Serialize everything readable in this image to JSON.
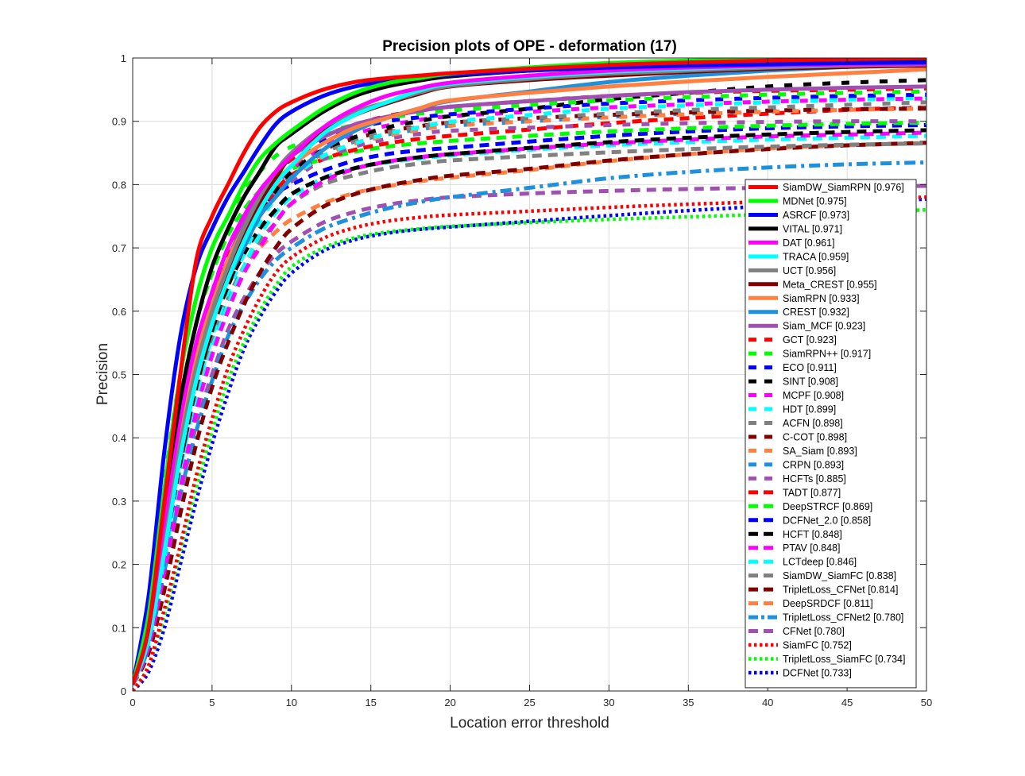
{
  "chart_data": {
    "type": "line",
    "title": "Precision plots of OPE - deformation (17)",
    "xlabel": "Location error threshold",
    "ylabel": "Precision",
    "xlim": [
      0,
      50
    ],
    "ylim": [
      0,
      1
    ],
    "xticks": [
      0,
      5,
      10,
      15,
      20,
      25,
      30,
      35,
      40,
      45,
      50
    ],
    "yticks": [
      0,
      0.1,
      0.2,
      0.3,
      0.4,
      0.5,
      0.6,
      0.7,
      0.8,
      0.9,
      1
    ],
    "ytick_labels": [
      "0",
      "0.1",
      "0.2",
      "0.3",
      "0.4",
      "0.5",
      "0.6",
      "0.7",
      "0.8",
      "0.9",
      "1"
    ],
    "grid": true,
    "legend_position": "right",
    "x": [
      0,
      1,
      2,
      3,
      4,
      5,
      6,
      7,
      8,
      9,
      10,
      12,
      14,
      16,
      18,
      20,
      25,
      30,
      35,
      40,
      45,
      50
    ],
    "series": [
      {
        "name": "SiamDW_SiamRPN [0.976]",
        "color": "#ff0000",
        "style": "solid",
        "values": [
          0.01,
          0.1,
          0.3,
          0.5,
          0.68,
          0.75,
          0.8,
          0.85,
          0.89,
          0.915,
          0.93,
          0.95,
          0.962,
          0.968,
          0.972,
          0.976,
          0.983,
          0.989,
          0.993,
          0.996,
          0.998,
          1.0
        ]
      },
      {
        "name": "MDNet [0.975]",
        "color": "#00ff00",
        "style": "solid",
        "values": [
          0.01,
          0.12,
          0.32,
          0.5,
          0.62,
          0.7,
          0.75,
          0.8,
          0.84,
          0.865,
          0.885,
          0.92,
          0.945,
          0.96,
          0.968,
          0.975,
          0.985,
          0.992,
          0.996,
          0.998,
          1.0,
          1.0
        ]
      },
      {
        "name": "ASRCF [0.973]",
        "color": "#0000ff",
        "style": "solid",
        "values": [
          0.01,
          0.15,
          0.38,
          0.56,
          0.67,
          0.73,
          0.78,
          0.82,
          0.86,
          0.895,
          0.915,
          0.94,
          0.955,
          0.963,
          0.969,
          0.973,
          0.98,
          0.985,
          0.988,
          0.99,
          0.992,
          0.993
        ]
      },
      {
        "name": "VITAL [0.971]",
        "color": "#000000",
        "style": "solid",
        "values": [
          0.01,
          0.1,
          0.3,
          0.46,
          0.58,
          0.67,
          0.73,
          0.78,
          0.82,
          0.86,
          0.88,
          0.915,
          0.94,
          0.955,
          0.964,
          0.971,
          0.98,
          0.986,
          0.99,
          0.993,
          0.995,
          0.996
        ]
      },
      {
        "name": "DAT [0.961]",
        "color": "#ff00ff",
        "style": "solid",
        "values": [
          0.01,
          0.1,
          0.27,
          0.43,
          0.55,
          0.63,
          0.7,
          0.75,
          0.79,
          0.82,
          0.845,
          0.89,
          0.92,
          0.94,
          0.952,
          0.961,
          0.972,
          0.98,
          0.985,
          0.988,
          0.99,
          0.991
        ]
      },
      {
        "name": "TRACA [0.959]",
        "color": "#00ffff",
        "style": "solid",
        "values": [
          0.01,
          0.08,
          0.22,
          0.37,
          0.49,
          0.58,
          0.65,
          0.71,
          0.76,
          0.8,
          0.83,
          0.88,
          0.91,
          0.93,
          0.948,
          0.959,
          0.97,
          0.978,
          0.983,
          0.987,
          0.99,
          0.991
        ]
      },
      {
        "name": "UCT [0.956]",
        "color": "#808080",
        "style": "solid",
        "values": [
          0.01,
          0.09,
          0.24,
          0.39,
          0.51,
          0.6,
          0.67,
          0.73,
          0.78,
          0.82,
          0.85,
          0.89,
          0.915,
          0.93,
          0.945,
          0.956,
          0.967,
          0.975,
          0.98,
          0.985,
          0.988,
          0.99
        ]
      },
      {
        "name": "Meta_CREST [0.955]",
        "color": "#800000",
        "style": "solid",
        "values": [
          0.01,
          0.09,
          0.23,
          0.38,
          0.5,
          0.59,
          0.66,
          0.72,
          0.77,
          0.81,
          0.845,
          0.885,
          0.91,
          0.928,
          0.943,
          0.955,
          0.965,
          0.972,
          0.978,
          0.983,
          0.986,
          0.988
        ]
      },
      {
        "name": "SiamRPN [0.933]",
        "color": "#ff8040",
        "style": "solid",
        "values": [
          0.01,
          0.1,
          0.26,
          0.41,
          0.53,
          0.61,
          0.68,
          0.73,
          0.77,
          0.8,
          0.83,
          0.865,
          0.89,
          0.905,
          0.92,
          0.933,
          0.945,
          0.955,
          0.963,
          0.97,
          0.976,
          0.982
        ]
      },
      {
        "name": "CREST [0.932]",
        "color": "#1e90dc",
        "style": "solid",
        "values": [
          0.01,
          0.08,
          0.22,
          0.37,
          0.49,
          0.58,
          0.65,
          0.7,
          0.75,
          0.78,
          0.81,
          0.855,
          0.885,
          0.905,
          0.92,
          0.932,
          0.947,
          0.962,
          0.972,
          0.98,
          0.986,
          0.99
        ]
      },
      {
        "name": "Siam_MCF [0.923]",
        "color": "#a050b0",
        "style": "solid",
        "values": [
          0.01,
          0.09,
          0.25,
          0.4,
          0.52,
          0.61,
          0.68,
          0.74,
          0.78,
          0.82,
          0.845,
          0.875,
          0.895,
          0.907,
          0.916,
          0.923,
          0.932,
          0.94,
          0.946,
          0.95,
          0.953,
          0.955
        ]
      },
      {
        "name": "GCT [0.923]",
        "color": "#ff0000",
        "style": "dashed",
        "values": [
          0.01,
          0.1,
          0.26,
          0.41,
          0.53,
          0.62,
          0.69,
          0.74,
          0.78,
          0.815,
          0.84,
          0.875,
          0.895,
          0.908,
          0.917,
          0.923,
          0.932,
          0.94,
          0.945,
          0.948,
          0.95,
          0.952
        ]
      },
      {
        "name": "SiamRPN++ [0.917]",
        "color": "#00ff00",
        "style": "dashed",
        "values": [
          0.01,
          0.13,
          0.33,
          0.5,
          0.62,
          0.7,
          0.75,
          0.79,
          0.82,
          0.845,
          0.86,
          0.88,
          0.895,
          0.905,
          0.912,
          0.917,
          0.926,
          0.933,
          0.938,
          0.942,
          0.945,
          0.947
        ]
      },
      {
        "name": "ECO [0.911]",
        "color": "#0000ff",
        "style": "dashed",
        "values": [
          0.01,
          0.1,
          0.27,
          0.42,
          0.54,
          0.63,
          0.7,
          0.75,
          0.79,
          0.82,
          0.84,
          0.87,
          0.888,
          0.9,
          0.906,
          0.911,
          0.92,
          0.928,
          0.933,
          0.937,
          0.94,
          0.942
        ]
      },
      {
        "name": "SINT [0.908]",
        "color": "#000000",
        "style": "dashed",
        "values": [
          0.01,
          0.08,
          0.22,
          0.36,
          0.48,
          0.57,
          0.64,
          0.7,
          0.75,
          0.79,
          0.82,
          0.855,
          0.875,
          0.89,
          0.9,
          0.908,
          0.92,
          0.935,
          0.945,
          0.955,
          0.961,
          0.965
        ]
      },
      {
        "name": "MCPF [0.908]",
        "color": "#ff00ff",
        "style": "dashed",
        "values": [
          0.01,
          0.09,
          0.24,
          0.39,
          0.51,
          0.6,
          0.67,
          0.72,
          0.77,
          0.8,
          0.825,
          0.86,
          0.88,
          0.893,
          0.902,
          0.908,
          0.915,
          0.922,
          0.927,
          0.931,
          0.934,
          0.936
        ]
      },
      {
        "name": "HDT [0.899]",
        "color": "#00ffff",
        "style": "dashed",
        "values": [
          0.01,
          0.08,
          0.21,
          0.35,
          0.47,
          0.56,
          0.63,
          0.69,
          0.74,
          0.78,
          0.81,
          0.845,
          0.865,
          0.88,
          0.89,
          0.899,
          0.91,
          0.92,
          0.925,
          0.93,
          0.934,
          0.937
        ]
      },
      {
        "name": "ACFN [0.898]",
        "color": "#808080",
        "style": "dashed",
        "values": [
          0.01,
          0.09,
          0.24,
          0.38,
          0.5,
          0.59,
          0.66,
          0.71,
          0.76,
          0.79,
          0.815,
          0.85,
          0.87,
          0.882,
          0.891,
          0.898,
          0.905,
          0.912,
          0.918,
          0.922,
          0.926,
          0.93
        ]
      },
      {
        "name": "C-COT [0.898]",
        "color": "#800000",
        "style": "dashed",
        "values": [
          0.01,
          0.09,
          0.23,
          0.38,
          0.5,
          0.59,
          0.66,
          0.72,
          0.76,
          0.8,
          0.825,
          0.855,
          0.873,
          0.884,
          0.892,
          0.898,
          0.905,
          0.91,
          0.914,
          0.917,
          0.919,
          0.92
        ]
      },
      {
        "name": "SA_Siam [0.893]",
        "color": "#ff8040",
        "style": "dashed",
        "values": [
          0.01,
          0.08,
          0.22,
          0.37,
          0.49,
          0.58,
          0.65,
          0.7,
          0.75,
          0.78,
          0.81,
          0.845,
          0.865,
          0.877,
          0.886,
          0.893,
          0.9,
          0.906,
          0.911,
          0.915,
          0.918,
          0.92
        ]
      },
      {
        "name": "CRPN [0.893]",
        "color": "#1e90dc",
        "style": "dashed",
        "values": [
          0.01,
          0.09,
          0.23,
          0.38,
          0.5,
          0.59,
          0.66,
          0.72,
          0.76,
          0.79,
          0.815,
          0.85,
          0.868,
          0.879,
          0.887,
          0.893,
          0.9,
          0.907,
          0.912,
          0.916,
          0.919,
          0.921
        ]
      },
      {
        "name": "HCFTs [0.885]",
        "color": "#a050b0",
        "style": "dashed",
        "values": [
          0.01,
          0.08,
          0.22,
          0.36,
          0.48,
          0.57,
          0.64,
          0.7,
          0.75,
          0.78,
          0.805,
          0.84,
          0.86,
          0.872,
          0.88,
          0.885,
          0.89,
          0.894,
          0.897,
          0.899,
          0.9,
          0.9
        ]
      },
      {
        "name": "TADT [0.877]",
        "color": "#ff0000",
        "style": "longdash",
        "values": [
          0.01,
          0.09,
          0.24,
          0.39,
          0.51,
          0.6,
          0.67,
          0.72,
          0.76,
          0.79,
          0.815,
          0.84,
          0.855,
          0.865,
          0.872,
          0.877,
          0.887,
          0.897,
          0.905,
          0.912,
          0.918,
          0.922
        ]
      },
      {
        "name": "DeepSTRCF [0.869]",
        "color": "#00ff00",
        "style": "longdash",
        "values": [
          0.01,
          0.12,
          0.3,
          0.46,
          0.58,
          0.66,
          0.72,
          0.76,
          0.79,
          0.81,
          0.825,
          0.84,
          0.852,
          0.86,
          0.865,
          0.869,
          0.877,
          0.884,
          0.889,
          0.893,
          0.896,
          0.898
        ]
      },
      {
        "name": "DCFNet_2.0 [0.858]",
        "color": "#0000ff",
        "style": "longdash",
        "values": [
          0.01,
          0.1,
          0.26,
          0.41,
          0.53,
          0.62,
          0.68,
          0.73,
          0.76,
          0.785,
          0.8,
          0.822,
          0.838,
          0.848,
          0.854,
          0.858,
          0.868,
          0.877,
          0.884,
          0.889,
          0.892,
          0.894
        ]
      },
      {
        "name": "HCFT [0.848]",
        "color": "#000000",
        "style": "longdash",
        "values": [
          0.01,
          0.08,
          0.22,
          0.36,
          0.48,
          0.57,
          0.64,
          0.69,
          0.73,
          0.76,
          0.785,
          0.81,
          0.826,
          0.836,
          0.843,
          0.848,
          0.858,
          0.867,
          0.874,
          0.879,
          0.883,
          0.886
        ]
      },
      {
        "name": "PTAV [0.848]",
        "color": "#ff00ff",
        "style": "longdash",
        "values": [
          0.01,
          0.07,
          0.19,
          0.32,
          0.44,
          0.53,
          0.6,
          0.66,
          0.7,
          0.74,
          0.77,
          0.805,
          0.825,
          0.836,
          0.843,
          0.848,
          0.857,
          0.865,
          0.871,
          0.876,
          0.879,
          0.882
        ]
      },
      {
        "name": "LCTdeep [0.846]",
        "color": "#00ffff",
        "style": "longdash",
        "values": [
          0.01,
          0.07,
          0.2,
          0.33,
          0.45,
          0.54,
          0.61,
          0.67,
          0.72,
          0.755,
          0.78,
          0.81,
          0.826,
          0.835,
          0.841,
          0.846,
          0.855,
          0.862,
          0.867,
          0.871,
          0.874,
          0.877
        ]
      },
      {
        "name": "SiamDW_SiamFC [0.838]",
        "color": "#808080",
        "style": "longdash",
        "values": [
          0.01,
          0.09,
          0.23,
          0.37,
          0.48,
          0.56,
          0.62,
          0.67,
          0.71,
          0.74,
          0.77,
          0.8,
          0.815,
          0.826,
          0.833,
          0.838,
          0.845,
          0.851,
          0.856,
          0.86,
          0.863,
          0.865
        ]
      },
      {
        "name": "TripletLoss_CFNet [0.814]",
        "color": "#800000",
        "style": "longdash",
        "values": [
          0.01,
          0.06,
          0.16,
          0.28,
          0.39,
          0.48,
          0.55,
          0.61,
          0.66,
          0.7,
          0.73,
          0.765,
          0.785,
          0.798,
          0.807,
          0.814,
          0.825,
          0.838,
          0.848,
          0.856,
          0.862,
          0.866
        ]
      },
      {
        "name": "DeepSRDCF [0.811]",
        "color": "#ff8040",
        "style": "longdash",
        "values": [
          0.01,
          0.08,
          0.22,
          0.36,
          0.47,
          0.56,
          0.62,
          0.67,
          0.7,
          0.725,
          0.745,
          0.77,
          0.787,
          0.797,
          0.805,
          0.811,
          0.823,
          0.837,
          0.848,
          0.857,
          0.862,
          0.866
        ]
      },
      {
        "name": "TripletLoss_CFNet2 [0.780]",
        "color": "#1e90dc",
        "style": "dashdot",
        "values": [
          0.01,
          0.07,
          0.19,
          0.31,
          0.41,
          0.49,
          0.56,
          0.61,
          0.65,
          0.68,
          0.7,
          0.73,
          0.748,
          0.762,
          0.772,
          0.78,
          0.795,
          0.81,
          0.82,
          0.827,
          0.832,
          0.835
        ]
      },
      {
        "name": "CFNet [0.780]",
        "color": "#a050b0",
        "style": "longdash",
        "values": [
          0.01,
          0.07,
          0.19,
          0.31,
          0.42,
          0.5,
          0.57,
          0.62,
          0.66,
          0.69,
          0.71,
          0.74,
          0.757,
          0.768,
          0.775,
          0.78,
          0.786,
          0.79,
          0.793,
          0.795,
          0.797,
          0.798
        ]
      },
      {
        "name": "SiamFC [0.752]",
        "color": "#ff0000",
        "style": "dotted",
        "values": [
          0.0,
          0.04,
          0.13,
          0.23,
          0.34,
          0.43,
          0.51,
          0.57,
          0.62,
          0.66,
          0.685,
          0.715,
          0.732,
          0.742,
          0.748,
          0.752,
          0.758,
          0.764,
          0.769,
          0.773,
          0.777,
          0.78
        ]
      },
      {
        "name": "TripletLoss_SiamFC [0.734]",
        "color": "#00ff00",
        "style": "dotted",
        "values": [
          0.0,
          0.04,
          0.12,
          0.22,
          0.32,
          0.41,
          0.49,
          0.55,
          0.6,
          0.64,
          0.67,
          0.7,
          0.716,
          0.725,
          0.73,
          0.734,
          0.74,
          0.745,
          0.749,
          0.753,
          0.757,
          0.76
        ]
      },
      {
        "name": "DCFNet [0.733]",
        "color": "#0000ff",
        "style": "dotted",
        "values": [
          0.0,
          0.03,
          0.1,
          0.2,
          0.3,
          0.39,
          0.47,
          0.54,
          0.59,
          0.63,
          0.66,
          0.695,
          0.713,
          0.723,
          0.729,
          0.733,
          0.742,
          0.751,
          0.759,
          0.766,
          0.772,
          0.777
        ]
      }
    ]
  }
}
